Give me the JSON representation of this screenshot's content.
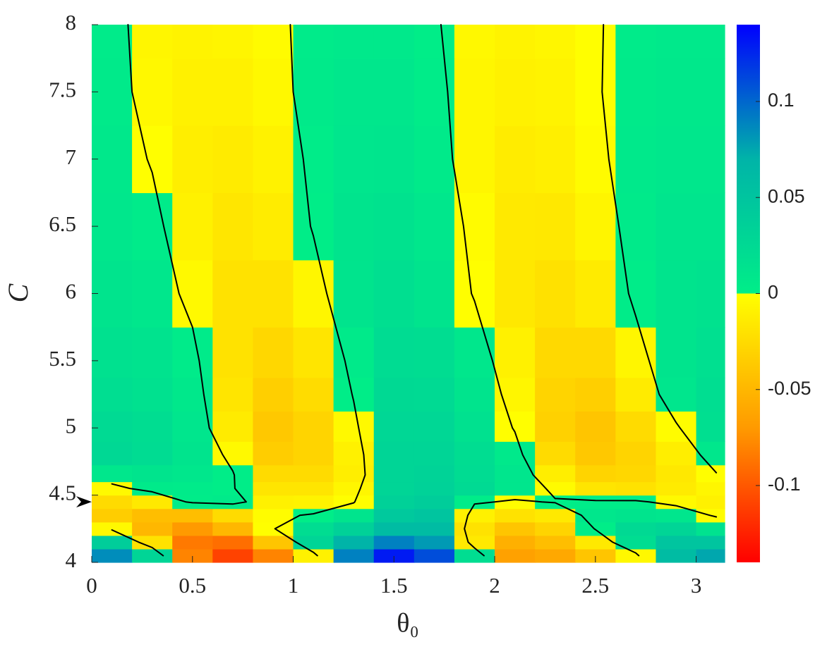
{
  "chart_data": {
    "type": "heatmap",
    "xlabel": "θ₀",
    "ylabel": "C",
    "xlim": [
      0,
      3.1416
    ],
    "xticks": [
      0,
      0.5,
      1,
      1.5,
      2,
      2.5,
      3
    ],
    "ylim": [
      4,
      8
    ],
    "yticks": [
      4,
      4.5,
      5,
      5.5,
      6,
      6.5,
      7,
      7.5,
      8
    ],
    "clim": [
      -0.14,
      0.14
    ],
    "cticks": [
      -0.1,
      -0.05,
      0,
      0.05,
      0.1
    ],
    "colormap_negative": [
      "#ff0000",
      "#ff9a00",
      "#ffff00"
    ],
    "colormap_positive": [
      "#00ee88",
      "#00b4a8",
      "#0000ff"
    ],
    "contour_level": 0,
    "contour_color": "#000000",
    "marker_y": 4.45,
    "x": [
      0.1,
      0.3,
      0.5,
      0.7,
      0.9,
      1.1,
      1.3,
      1.5,
      1.7,
      1.9,
      2.1,
      2.3,
      2.5,
      2.7,
      2.9,
      3.1
    ],
    "y": [
      4.05,
      4.15,
      4.25,
      4.35,
      4.45,
      4.55,
      4.65,
      4.8,
      5.0,
      5.25,
      5.5,
      6.0,
      6.5,
      7.0,
      7.5,
      8.0
    ],
    "z": [
      [
        0.085,
        0.03,
        -0.08,
        -0.11,
        -0.08,
        -0.01,
        0.09,
        0.13,
        0.11,
        0.02,
        -0.065,
        -0.06,
        -0.04,
        -0.005,
        0.06,
        0.075
      ],
      [
        0.04,
        -0.02,
        -0.085,
        -0.09,
        -0.04,
        0.03,
        0.07,
        0.09,
        0.08,
        -0.015,
        -0.055,
        -0.045,
        -0.015,
        0.02,
        0.05,
        0.05
      ],
      [
        -0.004,
        -0.05,
        -0.07,
        -0.05,
        -0.001,
        0.02,
        0.035,
        0.06,
        0.06,
        -0.02,
        -0.04,
        -0.03,
        0.001,
        0.025,
        0.03,
        0.015
      ],
      [
        -0.035,
        -0.045,
        -0.045,
        -0.025,
        -0.002,
        0.001,
        0.012,
        0.045,
        0.05,
        -0.01,
        -0.02,
        -0.015,
        0.008,
        0.012,
        0.01,
        -0.002
      ],
      [
        -0.025,
        -0.015,
        0.003,
        0.005,
        -0.01,
        -0.008,
        -0.001,
        0.035,
        0.04,
        0.002,
        -0.002,
        0.001,
        0.002,
        0.002,
        -0.004,
        -0.01
      ],
      [
        -0.004,
        0.005,
        0.004,
        0.001,
        -0.018,
        -0.018,
        -0.006,
        0.03,
        0.034,
        0.024,
        0.01,
        -0.003,
        -0.018,
        -0.02,
        -0.014,
        -0.006
      ],
      [
        0.008,
        0.012,
        0.008,
        0.001,
        -0.025,
        -0.025,
        -0.012,
        0.03,
        0.032,
        0.022,
        0.01,
        -0.012,
        -0.03,
        -0.028,
        -0.016,
        -0.001
      ],
      [
        0.026,
        0.022,
        0.012,
        -0.004,
        -0.035,
        -0.03,
        -0.01,
        0.03,
        0.03,
        0.02,
        0.006,
        -0.025,
        -0.038,
        -0.03,
        -0.012,
        0.008
      ],
      [
        0.024,
        0.02,
        0.01,
        -0.014,
        -0.038,
        -0.03,
        -0.004,
        0.028,
        0.028,
        0.016,
        -0.001,
        -0.032,
        -0.04,
        -0.025,
        -0.002,
        0.018
      ],
      [
        0.019,
        0.016,
        0.007,
        -0.018,
        -0.033,
        -0.024,
        0.001,
        0.025,
        0.024,
        0.012,
        -0.006,
        -0.03,
        -0.033,
        -0.014,
        0.01,
        0.019
      ],
      [
        0.016,
        0.013,
        0.004,
        -0.02,
        -0.028,
        -0.018,
        0.005,
        0.022,
        0.02,
        0.008,
        -0.01,
        -0.026,
        -0.026,
        -0.006,
        0.012,
        0.017
      ],
      [
        0.012,
        0.008,
        -0.004,
        -0.02,
        -0.02,
        -0.006,
        0.012,
        0.018,
        0.012,
        -0.001,
        -0.016,
        -0.021,
        -0.014,
        0.003,
        0.012,
        0.014
      ],
      [
        0.009,
        0.004,
        -0.01,
        -0.017,
        -0.013,
        0.001,
        0.012,
        0.014,
        0.008,
        -0.003,
        -0.015,
        -0.016,
        -0.007,
        0.005,
        0.011,
        0.011
      ],
      [
        0.007,
        -0.001,
        -0.012,
        -0.014,
        -0.009,
        0.003,
        0.01,
        0.011,
        0.005,
        -0.006,
        -0.013,
        -0.011,
        -0.003,
        0.006,
        0.009,
        0.009
      ],
      [
        0.005,
        -0.005,
        -0.01,
        -0.01,
        -0.005,
        0.005,
        0.008,
        0.008,
        0.003,
        -0.006,
        -0.01,
        -0.008,
        -0.001,
        0.005,
        0.007,
        0.007
      ],
      [
        0.004,
        -0.006,
        -0.008,
        -0.007,
        -0.003,
        0.004,
        0.006,
        0.006,
        0.001,
        -0.005,
        -0.008,
        -0.006,
        -0.001,
        0.004,
        0.006,
        0.006
      ]
    ]
  }
}
